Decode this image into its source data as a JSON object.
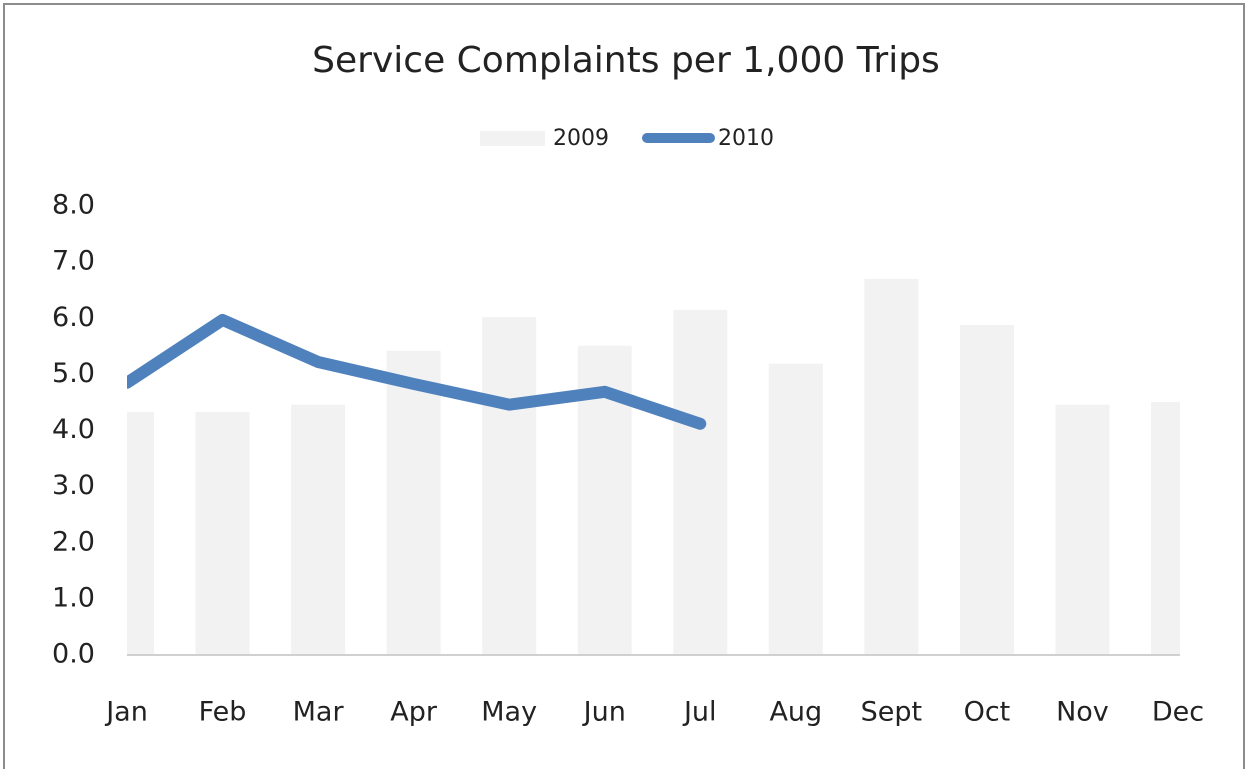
{
  "chart_data": {
    "type": "bar-line",
    "title": "Service Complaints per 1,000 Trips",
    "categories": [
      "Jan",
      "Feb",
      "Mar",
      "Apr",
      "May",
      "Jun",
      "Jul",
      "Aug",
      "Sept",
      "Oct",
      "Nov",
      "Dec"
    ],
    "series": [
      {
        "name": "2009",
        "type": "bar",
        "color": "#f2f2f2",
        "values": [
          4.33,
          4.33,
          4.46,
          5.42,
          6.02,
          5.51,
          6.15,
          5.19,
          6.7,
          5.88,
          4.46,
          4.51
        ]
      },
      {
        "name": "2010",
        "type": "line",
        "color": "#4f81bd",
        "values": [
          4.85,
          5.97,
          5.22,
          4.83,
          4.46,
          4.69,
          4.12,
          null,
          null,
          null,
          null,
          null
        ]
      }
    ],
    "ylim": [
      0,
      8
    ],
    "yticks": [
      {
        "value": 0,
        "label": "0.0"
      },
      {
        "value": 1,
        "label": "1.0"
      },
      {
        "value": 2,
        "label": "2.0"
      },
      {
        "value": 3,
        "label": "3.0"
      },
      {
        "value": 4,
        "label": "4.0"
      },
      {
        "value": 5,
        "label": "5.0"
      },
      {
        "value": 6,
        "label": "6.0"
      },
      {
        "value": 7,
        "label": "7.0"
      },
      {
        "value": 8,
        "label": "8.0"
      }
    ],
    "grid": false,
    "legend": "top"
  }
}
